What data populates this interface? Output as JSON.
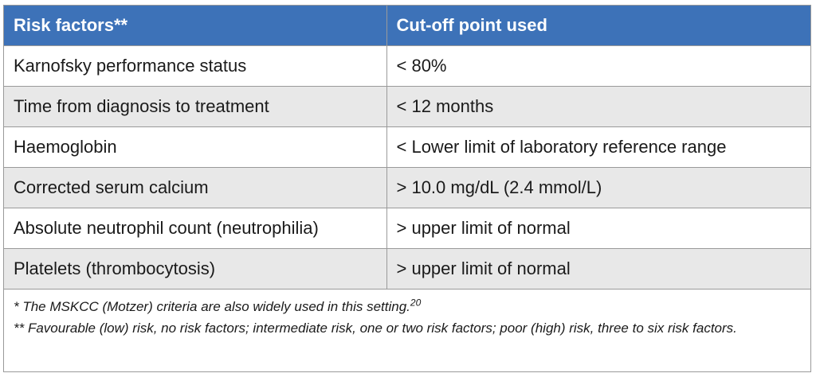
{
  "table": {
    "headers": [
      "Risk factors**",
      "Cut-off point used"
    ],
    "rows": [
      [
        "Karnofsky performance status",
        "< 80%"
      ],
      [
        "Time from diagnosis to treatment",
        "< 12 months"
      ],
      [
        "Haemoglobin",
        "< Lower limit of laboratory reference range"
      ],
      [
        "Corrected serum calcium",
        "> 10.0 mg/dL (2.4 mmol/L)"
      ],
      [
        "Absolute neutrophil count (neutrophilia)",
        "> upper limit of normal"
      ],
      [
        "Platelets (thrombocytosis)",
        "> upper limit of normal"
      ]
    ]
  },
  "footnotes": {
    "note1_text": "* The MSKCC (Motzer) criteria are also widely used in this setting.",
    "note1_ref": "20",
    "note2_text": "** Favourable (low) risk, no risk factors; intermediate risk, one or two risk factors; poor (high) risk, three to six risk factors."
  }
}
